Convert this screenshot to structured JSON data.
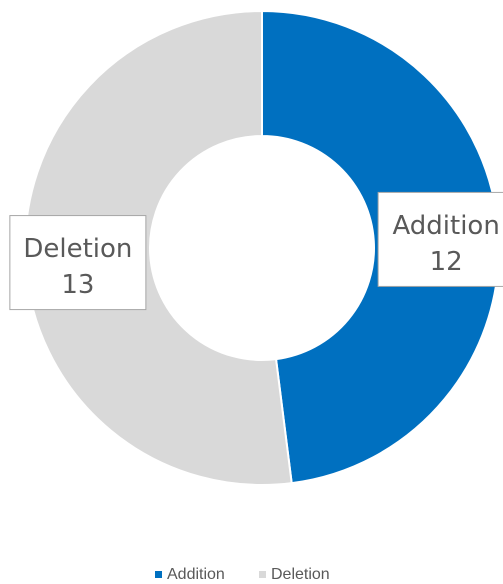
{
  "chart_data": {
    "type": "donut",
    "categories": [
      "Addition",
      "Deletion"
    ],
    "values": [
      12,
      13
    ],
    "colors": [
      "#0070c0",
      "#d9d9d9"
    ],
    "legend": "bottom"
  }
}
